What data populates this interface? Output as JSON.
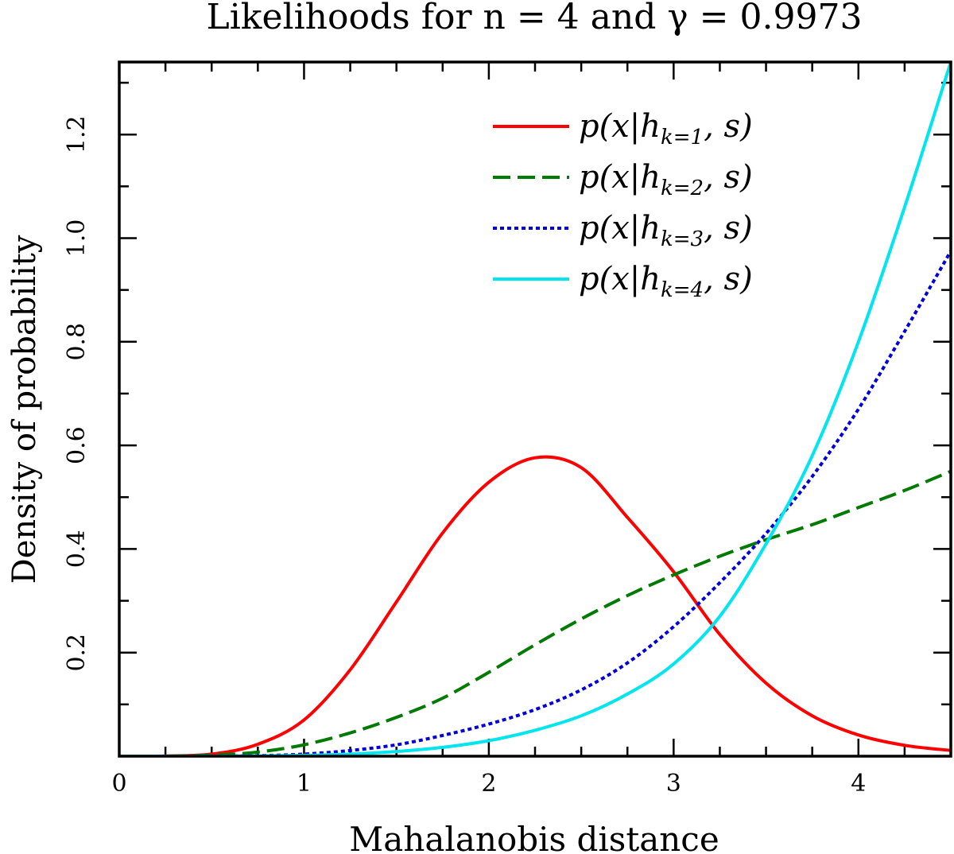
{
  "chart_data": {
    "type": "line",
    "title": "Likelihoods for n = 4 and γ = 0.9973",
    "xlabel": "Mahalanobis distance",
    "ylabel": "Density of probability",
    "xlim": [
      0,
      4.5
    ],
    "ylim": [
      0,
      1.34
    ],
    "xticks": [
      0,
      1,
      2,
      3,
      4
    ],
    "yticks": [
      0.2,
      0.4,
      0.6,
      0.8,
      1.0,
      1.2
    ],
    "grid": false,
    "legend_position": "top-right",
    "series": [
      {
        "name": "p(x|h_{k=1}, s)",
        "legend_main": "p(x|h",
        "legend_sub": "k=1",
        "legend_tail": ", s)",
        "color": "#ff0000",
        "dash": "solid",
        "x": [
          0,
          0.25,
          0.5,
          0.75,
          1.0,
          1.25,
          1.5,
          1.75,
          2.0,
          2.25,
          2.5,
          2.75,
          3.0,
          3.25,
          3.5,
          3.75,
          4.0,
          4.25,
          4.5
        ],
        "y": [
          0,
          0.0004,
          0.004,
          0.023,
          0.07,
          0.167,
          0.298,
          0.431,
          0.529,
          0.576,
          0.557,
          0.461,
          0.356,
          0.235,
          0.141,
          0.078,
          0.041,
          0.021,
          0.011
        ]
      },
      {
        "name": "p(x|h_{k=2}, s)",
        "legend_main": "p(x|h",
        "legend_sub": "k=2",
        "legend_tail": ", s)",
        "color": "#007a00",
        "dash": "dashed",
        "x": [
          0,
          0.25,
          0.5,
          0.75,
          1.0,
          1.25,
          1.5,
          1.75,
          2.0,
          2.25,
          2.5,
          2.75,
          3.0,
          3.25,
          3.5,
          3.75,
          4.0,
          4.25,
          4.5
        ],
        "y": [
          0,
          0.0001,
          0.002,
          0.008,
          0.022,
          0.045,
          0.075,
          0.112,
          0.162,
          0.215,
          0.265,
          0.31,
          0.35,
          0.386,
          0.418,
          0.447,
          0.48,
          0.513,
          0.55
        ]
      },
      {
        "name": "p(x|h_{k=3}, s)",
        "legend_main": "p(x|h",
        "legend_sub": "k=3",
        "legend_tail": ", s)",
        "color": "#0000dd",
        "dash": "dotted",
        "x": [
          0,
          0.25,
          0.5,
          0.75,
          1.0,
          1.25,
          1.5,
          1.75,
          2.0,
          2.25,
          2.5,
          2.75,
          3.0,
          3.25,
          3.5,
          3.75,
          4.0,
          4.25,
          4.5
        ],
        "y": [
          0,
          0,
          0.0002,
          0.001,
          0.004,
          0.011,
          0.022,
          0.04,
          0.062,
          0.09,
          0.128,
          0.18,
          0.25,
          0.335,
          0.43,
          0.54,
          0.67,
          0.82,
          0.975
        ]
      },
      {
        "name": "p(x|h_{k=4}, s)",
        "legend_main": "p(x|h",
        "legend_sub": "k=4",
        "legend_tail": ", s)",
        "color": "#00e5ee",
        "dash": "solid",
        "x": [
          0,
          0.25,
          0.5,
          0.75,
          1.0,
          1.25,
          1.5,
          1.75,
          2.0,
          2.25,
          2.5,
          2.75,
          3.0,
          3.25,
          3.5,
          3.75,
          4.0,
          4.25,
          4.5
        ],
        "y": [
          0,
          0,
          0,
          0.0003,
          0.0015,
          0.004,
          0.009,
          0.017,
          0.03,
          0.05,
          0.078,
          0.12,
          0.178,
          0.27,
          0.41,
          0.58,
          0.8,
          1.06,
          1.34
        ]
      }
    ]
  }
}
